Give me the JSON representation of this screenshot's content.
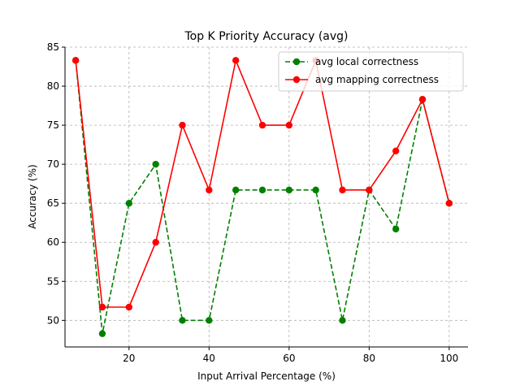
{
  "chart_data": {
    "type": "line",
    "title": "Top K Priority Accuracy (avg)",
    "xlabel": "Input Arrival Percentage (%)",
    "ylabel": "Accuracy (%)",
    "xlim": [
      4.0,
      104.7
    ],
    "ylim": [
      46.6,
      85.0
    ],
    "xticks": [
      20,
      40,
      60,
      80,
      100
    ],
    "yticks": [
      50,
      55,
      60,
      65,
      70,
      75,
      80,
      85
    ],
    "grid": true,
    "legend_position": "top-right",
    "x": [
      6.67,
      13.33,
      20.0,
      26.67,
      33.33,
      40.0,
      46.67,
      53.33,
      60.0,
      66.67,
      73.33,
      80.0,
      86.67,
      93.33,
      100.0
    ],
    "series": [
      {
        "name": "avg local correctness",
        "color": "#008000",
        "linestyle": "dashed",
        "marker": "circle",
        "values": [
          83.3,
          48.3,
          65.0,
          70.0,
          50.0,
          50.0,
          66.7,
          66.7,
          66.7,
          66.7,
          50.0,
          66.7,
          61.7,
          78.3,
          65.0
        ]
      },
      {
        "name": "avg mapping correctness",
        "color": "#ff0000",
        "linestyle": "solid",
        "marker": "circle",
        "values": [
          83.3,
          51.7,
          51.7,
          60.0,
          75.0,
          66.7,
          83.3,
          75.0,
          75.0,
          83.3,
          66.7,
          66.7,
          71.7,
          78.3,
          65.0
        ]
      }
    ]
  }
}
